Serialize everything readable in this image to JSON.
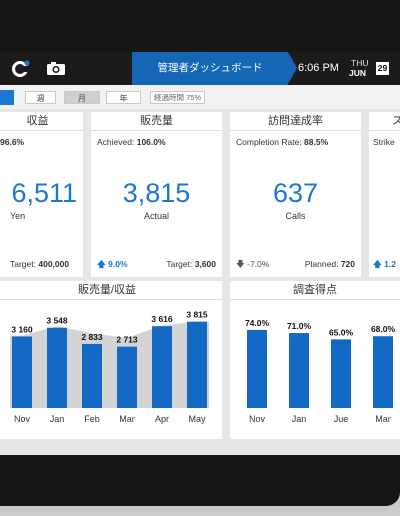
{
  "header": {
    "title": "管理者ダッシュボード",
    "time": "6:06 PM",
    "day_of_week": "THU",
    "month": "JUN",
    "day": "29"
  },
  "filters": {
    "tabs": [
      "週",
      "月",
      "年"
    ],
    "active_tab": "月",
    "elapsed": "経過時間 75%"
  },
  "kpis": [
    {
      "title": "収益",
      "sub_label": "",
      "sub_value": "96.6%",
      "value": "6,511",
      "unit": "Yen",
      "trend": "",
      "target_label": "Target:",
      "target_value": "400,000"
    },
    {
      "title": "販売量",
      "sub_label": "Achieved:",
      "sub_value": "106.0%",
      "value": "3,815",
      "unit": "Actual",
      "trend": "9.0%",
      "trend_dir": "up",
      "target_label": "Target:",
      "target_value": "3,600"
    },
    {
      "title": "訪問達成率",
      "sub_label": "Completion Rate:",
      "sub_value": "88.5%",
      "value": "637",
      "unit": "Calls",
      "trend": "-7.0%",
      "trend_dir": "down",
      "target_label": "Planned:",
      "target_value": "720"
    },
    {
      "title": "ス",
      "sub_label": "Strike",
      "sub_value": "",
      "value": "",
      "unit": "",
      "trend": "1.2",
      "trend_dir": "up",
      "target_label": "",
      "target_value": ""
    }
  ],
  "sales_chart": {
    "title": "販売量/収益"
  },
  "survey_chart": {
    "title": "調査得点"
  },
  "colors": {
    "accent": "#1b78d2",
    "header": "#1b1b1b",
    "title_bar": "#1566b5"
  },
  "chart_data": [
    {
      "type": "bar",
      "title": "販売量/収益",
      "categories": [
        "Nov",
        "Jan",
        "Feb",
        "Mar",
        "Apr",
        "May"
      ],
      "value_labels": [
        "3 160",
        "3 548",
        "2 833",
        "2 713",
        "3 616",
        "3 815"
      ],
      "values": [
        3160,
        3548,
        2833,
        2713,
        3616,
        3815
      ],
      "background_area": [
        3200,
        3620,
        3300,
        3100,
        3650,
        3830
      ],
      "ylim": [
        0,
        4200
      ],
      "grid": false
    },
    {
      "type": "bar",
      "title": "調査得点",
      "categories": [
        "Nov",
        "Jan",
        "Jue",
        "Mar"
      ],
      "value_labels": [
        "74.0%",
        "71.0%",
        "65.0%",
        "68.0%"
      ],
      "values": [
        74.0,
        71.0,
        65.0,
        68.0
      ],
      "ylim": [
        0,
        90
      ],
      "grid": false
    }
  ]
}
